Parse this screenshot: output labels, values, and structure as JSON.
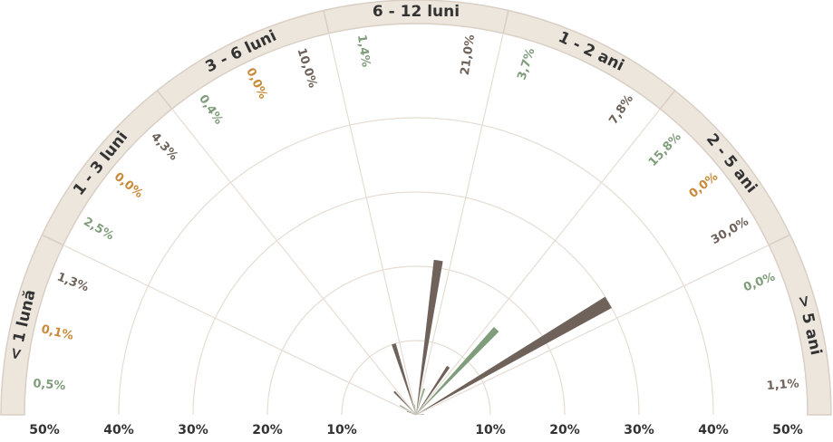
{
  "colors": {
    "series_dark": "#6e625a",
    "series_green": "#7f9d7b",
    "series_orange": "#c98a3a",
    "band_fill": "#ede6dd",
    "band_stroke": "#d9cfc4",
    "grid": "#e6ddd3",
    "text_dark": "#333333"
  },
  "chart_data": {
    "type": "polar-bar",
    "categories": [
      "< 1 lună",
      "1 - 3 luni",
      "3 - 6 luni",
      "6 - 12 luni",
      "1 - 2 ani",
      "2 - 5 ani",
      "> 5 ani"
    ],
    "series": [
      {
        "values": [
          0.5,
          2.5,
          0.4,
          1.4,
          3.7,
          15.8,
          0.0
        ],
        "color": "#7f9d7b"
      },
      {
        "values": [
          0.1,
          0.0,
          0.0,
          null,
          null,
          0.0,
          null
        ],
        "color": "#c98a3a"
      },
      {
        "values": [
          1.3,
          4.3,
          10.0,
          21.0,
          7.8,
          30.0,
          1.1
        ],
        "color": "#6e625a"
      }
    ],
    "value_labels": [
      [
        "0,5%",
        "0,1%",
        "1,3%"
      ],
      [
        "2,5%",
        "0,0%",
        "4,3%"
      ],
      [
        "0,4%",
        "0,0%",
        "10,0%"
      ],
      [
        "1,4%",
        "",
        "21,0%"
      ],
      [
        "3,7%",
        "",
        "7,8%"
      ],
      [
        "15,8%",
        "0,0%",
        "30,0%"
      ],
      [
        "0,0%",
        "",
        "1,1%"
      ]
    ],
    "radial_axis_ticks": [
      "50%",
      "40%",
      "30%",
      "20%",
      "10%",
      "10%",
      "20%",
      "30%",
      "40%",
      "50%"
    ],
    "rlim": [
      0,
      50
    ],
    "grid": true
  }
}
